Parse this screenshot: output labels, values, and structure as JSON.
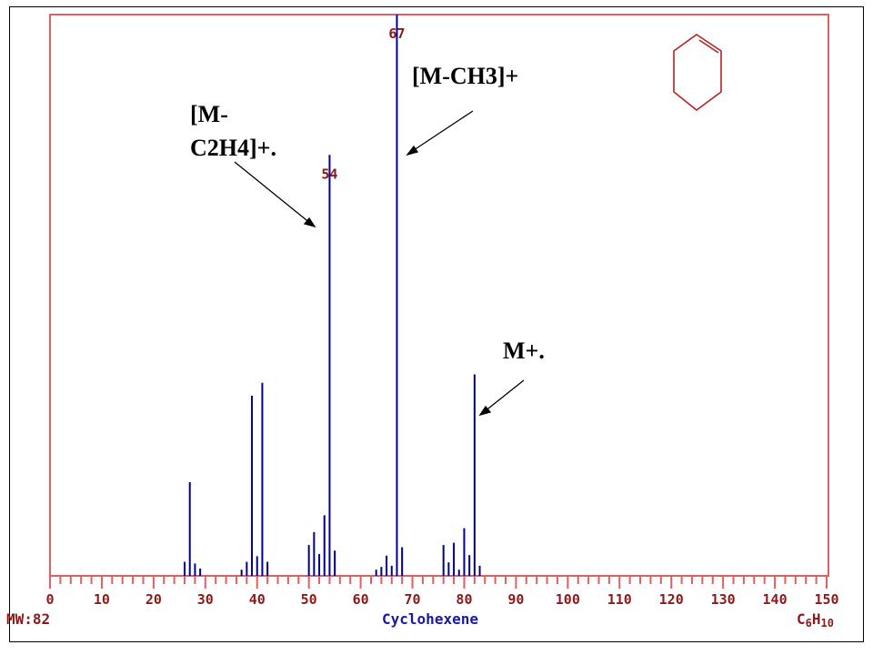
{
  "chart_data": {
    "type": "bar",
    "title": "Cyclohexene",
    "xlabel": "",
    "ylabel": "",
    "xlim": [
      0,
      150
    ],
    "ylim": [
      0,
      100
    ],
    "x_ticks": [
      "0",
      "10",
      "20",
      "30",
      "40",
      "50",
      "60",
      "70",
      "80",
      "90",
      "100",
      "110",
      "120",
      "130",
      "140",
      "150"
    ],
    "grid": false,
    "molecular_weight_label": "MW:82",
    "formula_main": "C",
    "formula_sub1": "6",
    "formula_mid": "H",
    "formula_sub2": "10",
    "peak_labels": [
      {
        "text": "67",
        "x": 67
      },
      {
        "text": "54",
        "x": 54
      }
    ],
    "annotations": {
      "m_c2h4_line1": "[M-",
      "m_c2h4_line2": "C2H4]+.",
      "m_ch3": "[M-CH3]+",
      "m_plus": "M+."
    },
    "series": [
      {
        "x": [
          26,
          27,
          28,
          29,
          37,
          38,
          39,
          40,
          41,
          42,
          50,
          51,
          52,
          53,
          54,
          55,
          63,
          64,
          65,
          66,
          67,
          68,
          76,
          77,
          78,
          79,
          80,
          81,
          82,
          83
        ],
        "values": [
          2.5,
          16.7,
          2.2,
          1.3,
          1.1,
          2.5,
          32.1,
          3.5,
          34.4,
          2.5,
          5.5,
          7.8,
          3.9,
          10.8,
          75.0,
          4.5,
          1.1,
          1.6,
          3.6,
          1.8,
          100,
          5.1,
          5.5,
          2.4,
          5.9,
          1.1,
          8.5,
          3.7,
          35.9,
          1.8
        ]
      }
    ],
    "colors": {
      "frame": "#e06060",
      "bars": "#00008b",
      "label_red": "#8b1a1a",
      "title_blue": "#1a1aa0"
    }
  }
}
